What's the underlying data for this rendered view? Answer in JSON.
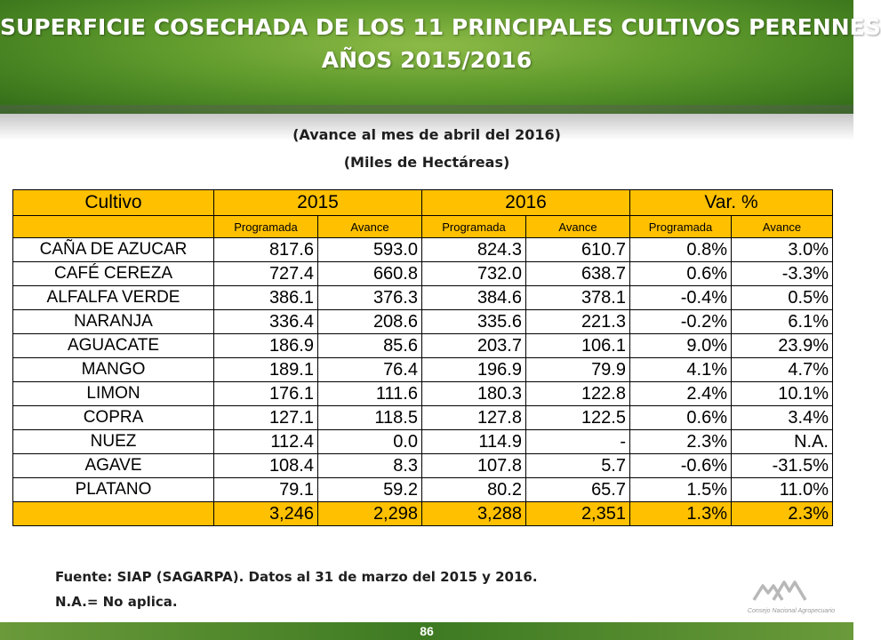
{
  "title": {
    "line1": "SUPERFICIE COSECHADA DE LOS 11 PRINCIPALES CULTIVOS PERENNES",
    "line2": "AÑOS 2015/2016"
  },
  "subtitle": {
    "line1": "(Avance al mes de abril del 2016)",
    "line2": "(Miles de Hectáreas)"
  },
  "table": {
    "header_main": [
      "Cultivo",
      "2015",
      "2016",
      "Var. %"
    ],
    "header_sub": [
      "Programada",
      "Avance",
      "Programada",
      "Avance",
      "Programada",
      "Avance"
    ],
    "rows": [
      [
        "CAÑA DE AZUCAR",
        "817.6",
        "593.0",
        "824.3",
        "610.7",
        "0.8%",
        "3.0%"
      ],
      [
        "CAFÉ CEREZA",
        "727.4",
        "660.8",
        "732.0",
        "638.7",
        "0.6%",
        "-3.3%"
      ],
      [
        "ALFALFA VERDE",
        "386.1",
        "376.3",
        "384.6",
        "378.1",
        "-0.4%",
        "0.5%"
      ],
      [
        "NARANJA",
        "336.4",
        "208.6",
        "335.6",
        "221.3",
        "-0.2%",
        "6.1%"
      ],
      [
        "AGUACATE",
        "186.9",
        "85.6",
        "203.7",
        "106.1",
        "9.0%",
        "23.9%"
      ],
      [
        "MANGO",
        "189.1",
        "76.4",
        "196.9",
        "79.9",
        "4.1%",
        "4.7%"
      ],
      [
        "LIMON",
        "176.1",
        "111.6",
        "180.3",
        "122.8",
        "2.4%",
        "10.1%"
      ],
      [
        "COPRA",
        "127.1",
        "118.5",
        "127.8",
        "122.5",
        "0.6%",
        "3.4%"
      ],
      [
        "NUEZ",
        "112.4",
        "0.0",
        "114.9",
        "-",
        "2.3%",
        "N.A."
      ],
      [
        "AGAVE",
        "108.4",
        "8.3",
        "107.8",
        "5.7",
        "-0.6%",
        "-31.5%"
      ],
      [
        "PLATANO",
        "79.1",
        "59.2",
        "80.2",
        "65.7",
        "1.5%",
        "11.0%"
      ]
    ],
    "total": [
      "",
      "3,246",
      "2,298",
      "3,288",
      "2,351",
      "1.3%",
      "2.3%"
    ]
  },
  "footer": {
    "source": "Fuente: SIAP (SAGARPA). Datos al 31 de marzo del 2015 y 2016.",
    "note": "N.A.= No aplica."
  },
  "page_number": "86",
  "logo": {
    "text": "Consejo Nacional Agropecuario"
  },
  "colors": {
    "header_fill": "#ffc000",
    "banner_green": "#5e9a2c"
  }
}
